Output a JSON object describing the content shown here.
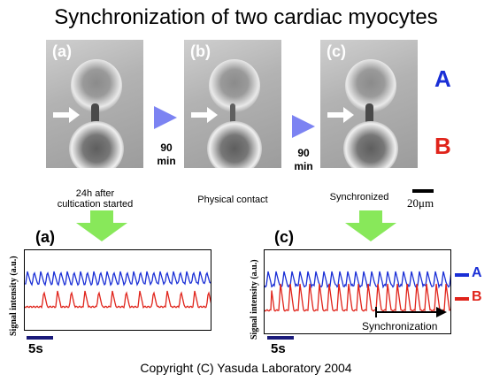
{
  "title": "Synchronization of two cardiac myocytes",
  "panels": [
    {
      "label": "(a)",
      "caption_line1": "24h after",
      "caption_line2": "cultication started"
    },
    {
      "label": "(b)",
      "caption_line1": "Physical contact"
    },
    {
      "label": "(c)",
      "caption_line1": "Synchronized"
    }
  ],
  "time_steps": [
    {
      "value": "90",
      "unit": "min"
    },
    {
      "value": "90",
      "unit": "min"
    }
  ],
  "cell_labels": {
    "a": "A",
    "b": "B"
  },
  "scale_bar_label": "20μm",
  "plots": [
    {
      "label": "(a)",
      "ylabel": "Signal intensity (a.u.)",
      "scale_label": "5s"
    },
    {
      "label": "(c)",
      "ylabel": "Signal intensity (a.u.)",
      "scale_label": "5s",
      "annotation": "Synchronization"
    }
  ],
  "trace_labels": {
    "a": "A",
    "b": "B"
  },
  "colors": {
    "blue": "#1a2fd6",
    "red": "#e0241b",
    "arrow_blue": "#7c83f2",
    "arrow_green": "#88e85a",
    "scalebar": "#1a1a7a"
  },
  "copyright": "Copyright (C) Yasuda Laboratory 2004"
}
